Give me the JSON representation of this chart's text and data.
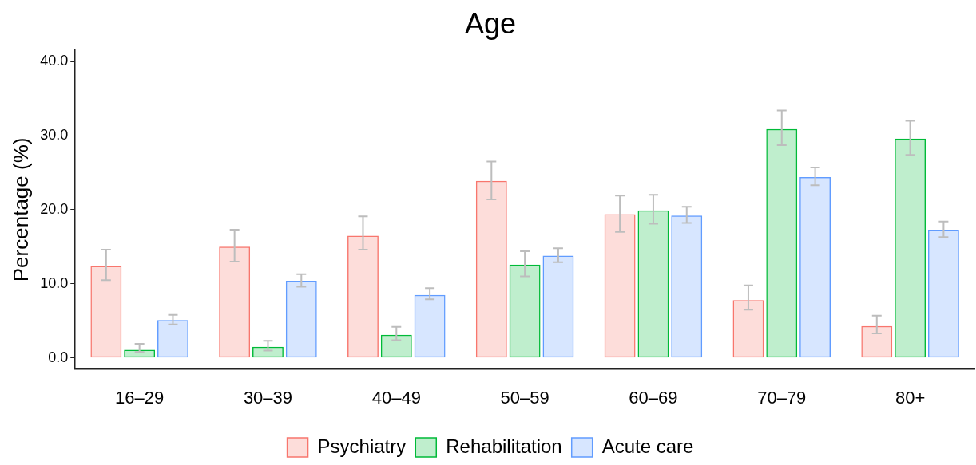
{
  "chart_data": {
    "type": "bar",
    "title": "Age",
    "ylabel": "Percentage (%)",
    "categories": [
      "16–29",
      "30–39",
      "40–49",
      "50–59",
      "60–69",
      "70–79",
      "80+"
    ],
    "series": [
      {
        "name": "Psychiatry",
        "color": "#f8766d",
        "values": [
          12.4,
          15.0,
          16.5,
          23.9,
          19.4,
          7.8,
          4.3
        ],
        "errors": [
          [
            10.5,
            14.6
          ],
          [
            13.0,
            17.3
          ],
          [
            14.6,
            19.1
          ],
          [
            21.4,
            26.5
          ],
          [
            17.0,
            21.9
          ],
          [
            6.5,
            9.8
          ],
          [
            3.3,
            5.7
          ]
        ]
      },
      {
        "name": "Rehabilitation",
        "color": "#00ba38",
        "values": [
          1.1,
          1.5,
          3.1,
          12.6,
          19.9,
          30.9,
          29.6
        ],
        "errors": [
          [
            0.8,
            1.9
          ],
          [
            1.0,
            2.3
          ],
          [
            2.4,
            4.2
          ],
          [
            11.0,
            14.4
          ],
          [
            18.1,
            22.0
          ],
          [
            28.7,
            33.4
          ],
          [
            27.4,
            32.0
          ]
        ]
      },
      {
        "name": "Acute care",
        "color": "#619cff",
        "values": [
          5.1,
          10.4,
          8.5,
          13.8,
          19.2,
          24.4,
          17.3
        ],
        "errors": [
          [
            4.5,
            5.8
          ],
          [
            9.6,
            11.3
          ],
          [
            7.9,
            9.4
          ],
          [
            12.9,
            14.8
          ],
          [
            18.2,
            20.4
          ],
          [
            23.3,
            25.7
          ],
          [
            16.3,
            18.4
          ]
        ]
      }
    ],
    "ylim": [
      -1.5,
      41.5
    ],
    "yticks": [
      {
        "value": 0,
        "label": "0.0"
      },
      {
        "value": 10,
        "label": "10.0"
      },
      {
        "value": 20,
        "label": "20.0"
      },
      {
        "value": 30,
        "label": "30.0"
      },
      {
        "value": 40,
        "label": "40.0"
      }
    ],
    "grid": false,
    "legend": "bottom"
  }
}
